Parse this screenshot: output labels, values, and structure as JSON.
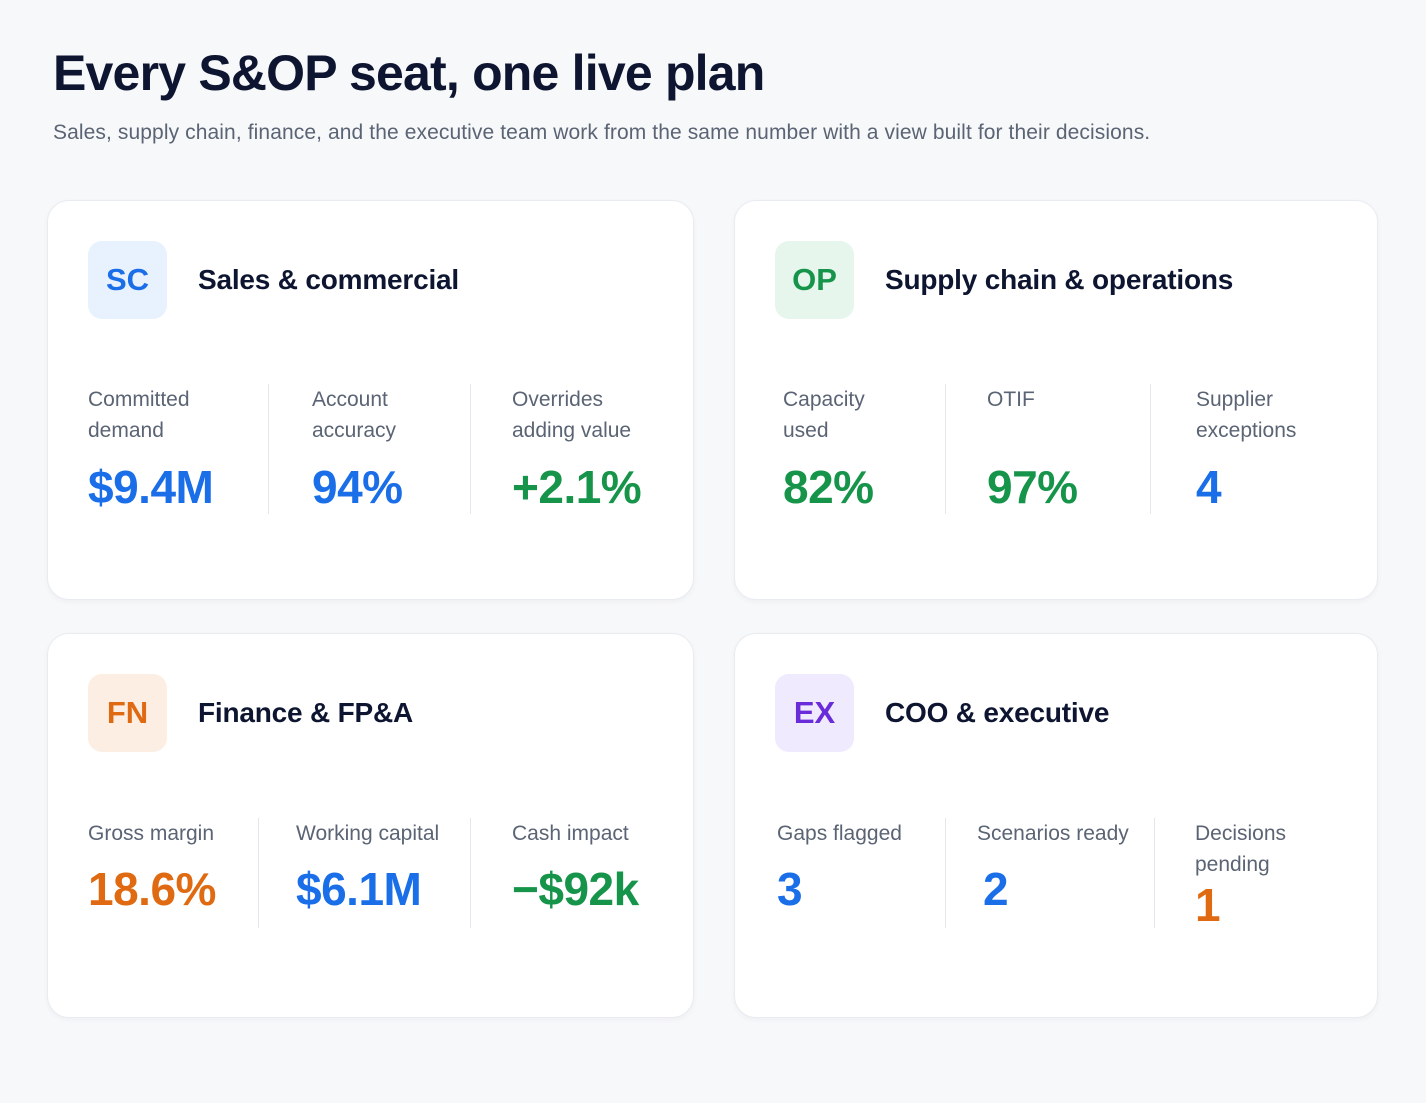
{
  "header": {
    "title": "Every S&OP seat, one live plan",
    "subtitle": "Sales, supply chain, finance, and the executive team work from the same number with a view built for their decisions."
  },
  "cards": [
    {
      "badge": "SC",
      "title": "Sales & commercial",
      "badge_bg": "#e8f1fe",
      "badge_color": "#1a6ee8",
      "metrics": [
        {
          "label": "Committed demand",
          "value": "$9.4M",
          "color": "#1a6ee8"
        },
        {
          "label": "Account accuracy",
          "value": "94%",
          "color": "#1a6ee8"
        },
        {
          "label": "Overrides adding value",
          "value": "+2.1%",
          "color": "#16944a"
        }
      ]
    },
    {
      "badge": "OP",
      "title": "Supply chain & operations",
      "badge_bg": "#e6f6ec",
      "badge_color": "#16944a",
      "metrics": [
        {
          "label": "Capacity used",
          "value": "82%",
          "color": "#16944a"
        },
        {
          "label": "OTIF",
          "value": "97%",
          "color": "#16944a"
        },
        {
          "label": "Supplier exceptions",
          "value": "4",
          "color": "#1a6ee8"
        }
      ]
    },
    {
      "badge": "FN",
      "title": "Finance & FP&A",
      "badge_bg": "#fdeee3",
      "badge_color": "#e06a12",
      "metrics": [
        {
          "label": "Gross margin",
          "value": "18.6%",
          "color": "#e06a12"
        },
        {
          "label": "Working capital",
          "value": "$6.1M",
          "color": "#1a6ee8"
        },
        {
          "label": "Cash impact",
          "value": "−$92k",
          "color": "#16944a"
        }
      ]
    },
    {
      "badge": "EX",
      "title": "COO & executive",
      "badge_bg": "#efeafd",
      "badge_color": "#6a2bd9",
      "metrics": [
        {
          "label": "Gaps flagged",
          "value": "3",
          "color": "#1a6ee8"
        },
        {
          "label": "Scenarios ready",
          "value": "2",
          "color": "#1a6ee8"
        },
        {
          "label": "Decisions pending",
          "value": "1",
          "color": "#e06a12"
        }
      ]
    }
  ]
}
